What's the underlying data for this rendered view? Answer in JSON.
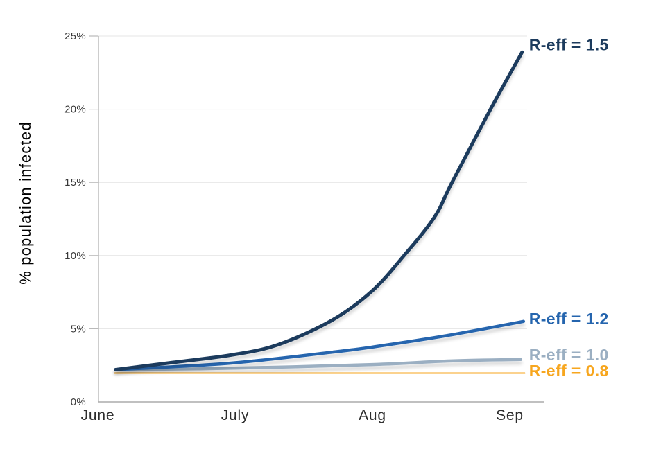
{
  "chart_data": {
    "type": "line",
    "title": "",
    "ylabel": "% population infected",
    "xlabel": "",
    "x_tick_labels": [
      "June",
      "July",
      "Aug",
      "Sep"
    ],
    "y_ticks_pct": [
      0,
      5,
      10,
      15,
      20,
      25
    ],
    "y_tick_suffix": "%",
    "ylim": [
      0,
      25
    ],
    "xlim_months": [
      0,
      3.25
    ],
    "grid": "horizontal-only",
    "legend": "inline-end-of-line-labels",
    "series": [
      {
        "name": "R-eff = 0.8",
        "color": "#F7A61E",
        "stroke_width": 5,
        "points_month_pct": [
          [
            0.13,
            2.0
          ],
          [
            1.0,
            1.98
          ],
          [
            2.0,
            1.96
          ],
          [
            3.1,
            1.95
          ]
        ]
      },
      {
        "name": "R-eff = 1.0",
        "color": "#9BAFC2",
        "stroke_width": 4.5,
        "points_month_pct": [
          [
            0.13,
            2.2
          ],
          [
            0.97,
            2.3
          ],
          [
            2.0,
            2.55
          ],
          [
            2.57,
            2.8
          ],
          [
            3.08,
            2.9
          ]
        ]
      },
      {
        "name": "R-eff = 1.2",
        "color": "#2565AE",
        "stroke_width": 4.5,
        "points_month_pct": [
          [
            0.13,
            2.2
          ],
          [
            0.97,
            2.65
          ],
          [
            1.71,
            3.4
          ],
          [
            2.0,
            3.75
          ],
          [
            2.52,
            4.5
          ],
          [
            3.1,
            5.5
          ]
        ]
      },
      {
        "name": "R-eff = 1.5",
        "color": "#1C3B5D",
        "stroke_width": 5,
        "points_month_pct": [
          [
            0.13,
            2.2
          ],
          [
            0.55,
            2.7
          ],
          [
            0.97,
            3.2
          ],
          [
            1.31,
            3.9
          ],
          [
            1.71,
            5.6
          ],
          [
            2.0,
            7.6
          ],
          [
            2.23,
            10.0
          ],
          [
            2.45,
            12.6
          ],
          [
            2.58,
            15.0
          ],
          [
            2.86,
            20.0
          ],
          [
            3.09,
            23.9
          ]
        ]
      }
    ],
    "annotations": [
      {
        "text": "R-eff = 1.5",
        "color": "#1C3B5D",
        "x_month": 3.14,
        "y_pct": 24.4
      },
      {
        "text": "R-eff = 1.2",
        "color": "#2565AE",
        "x_month": 3.14,
        "y_pct": 5.68
      },
      {
        "text": "R-eff = 1.0",
        "color": "#9BAFC2",
        "x_month": 3.14,
        "y_pct": 3.22
      },
      {
        "text": "R-eff = 0.8",
        "color": "#F7A61E",
        "x_month": 3.14,
        "y_pct": 2.13
      }
    ],
    "palette": {
      "background": "#FFFFFF",
      "gridline": "#E4E4E4",
      "axis_line": "#ACACAC",
      "tick": "#B9B9B9",
      "tick_label": "#383838",
      "axis_title": "#2B2B2B"
    }
  }
}
